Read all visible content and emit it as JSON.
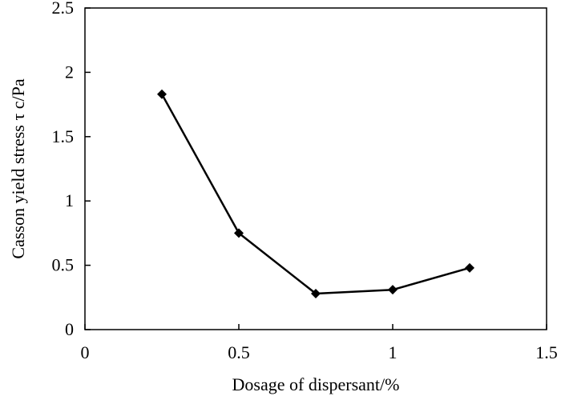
{
  "chart_data": {
    "type": "line",
    "xlabel": "Dosage of dispersant/%",
    "ylabel": "Casson yield stress τ c/Pa",
    "xlim": [
      0,
      1.5
    ],
    "ylim": [
      0,
      2.5
    ],
    "xticks": [
      0,
      0.5,
      1,
      1.5
    ],
    "xtick_labels": [
      "0",
      "0.5",
      "1",
      "1.5"
    ],
    "yticks": [
      0,
      0.5,
      1,
      1.5,
      2,
      2.5
    ],
    "ytick_labels": [
      "0",
      "0.5",
      "1",
      "1.5",
      "2",
      "2.5"
    ],
    "grid": false,
    "legend": "none",
    "series": [
      {
        "x": [
          0.25,
          0.5,
          0.75,
          1.0,
          1.25
        ],
        "y": [
          1.83,
          0.75,
          0.28,
          0.31,
          0.48
        ],
        "color": "#000000",
        "marker": "diamond"
      }
    ]
  }
}
